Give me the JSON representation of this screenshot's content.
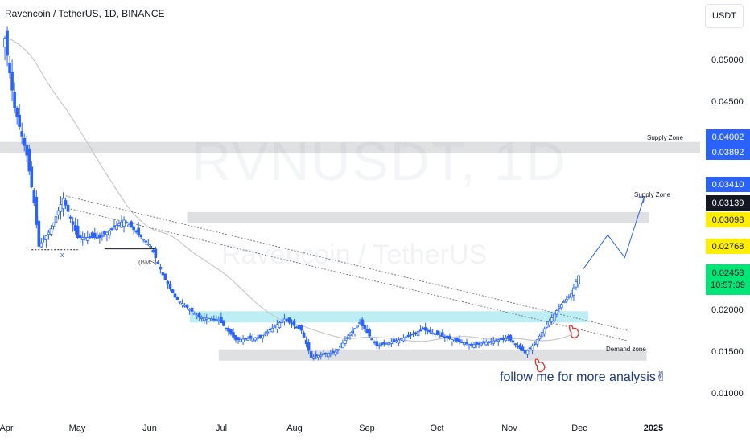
{
  "header": {
    "title": "Ravencoin / TetherUS, 1D, BINANCE",
    "currency": "USDT"
  },
  "watermark": {
    "symbol": "RVNUSDT, 1D",
    "name": "Ravencoin / TetherUS"
  },
  "annotations": {
    "supply_zone_1": "Supply Zone",
    "supply_zone_2": "Supply Zone",
    "demand_zone": "Demand zone",
    "bms": "(BMS)",
    "x_mark": "x",
    "follow": "follow me for more analysis✌"
  },
  "price_labels": [
    {
      "value": "0.04002",
      "style": "blue"
    },
    {
      "value": "0.03892",
      "style": "blue"
    },
    {
      "value": "0.03410",
      "style": "blue"
    },
    {
      "value": "0.03139",
      "style": "black"
    },
    {
      "value": "0.03098",
      "style": "yellow"
    },
    {
      "value": "0.02768",
      "style": "yellow"
    },
    {
      "value": "0.02458",
      "style": "green"
    }
  ],
  "countdown": "10:57:09",
  "colors": {
    "candle": "#2962ff",
    "supply_zone": "#d9dadd",
    "demand_zone": "#b2ebf2",
    "demand_zone_grey": "#d9dadd",
    "ma_line": "#c8c8c8",
    "trendline": "#787b86",
    "projection": "#2962ff",
    "hand": "#e53935"
  },
  "chart_data": {
    "type": "candlestick",
    "title": "Ravencoin / TetherUS, 1D, BINANCE",
    "y_ticks": [
      "0.05000",
      "0.04500",
      "0.02000",
      "0.01500",
      "0.01000"
    ],
    "y_tick_values": [
      0.05,
      0.045,
      0.02,
      0.015,
      0.01
    ],
    "x_ticks": [
      "Apr",
      "May",
      "Jun",
      "Jul",
      "Aug",
      "Sep",
      "Oct",
      "Nov",
      "Dec",
      "2025"
    ],
    "ylim": [
      0.0082,
      0.0564
    ],
    "xlim": [
      "2024-03-30",
      "2025-01-12"
    ],
    "series": [
      {
        "name": "RVNUSDT",
        "approx_close": [
          [
            "2024-04-01",
            0.052
          ],
          [
            "2024-04-05",
            0.044
          ],
          [
            "2024-04-10",
            0.0385
          ],
          [
            "2024-04-13",
            0.033
          ],
          [
            "2024-04-15",
            0.028
          ],
          [
            "2024-04-20",
            0.03
          ],
          [
            "2024-04-25",
            0.0335
          ],
          [
            "2024-05-01",
            0.029
          ],
          [
            "2024-05-10",
            0.029
          ],
          [
            "2024-05-20",
            0.031
          ],
          [
            "2024-05-31",
            0.028
          ],
          [
            "2024-06-05",
            0.0247
          ],
          [
            "2024-06-10",
            0.0221
          ],
          [
            "2024-06-20",
            0.0198
          ],
          [
            "2024-06-28",
            0.0195
          ],
          [
            "2024-07-05",
            0.0172
          ],
          [
            "2024-07-15",
            0.0175
          ],
          [
            "2024-07-25",
            0.0196
          ],
          [
            "2024-08-01",
            0.0183
          ],
          [
            "2024-08-05",
            0.0152
          ],
          [
            "2024-08-15",
            0.0158
          ],
          [
            "2024-08-25",
            0.0192
          ],
          [
            "2024-09-01",
            0.0165
          ],
          [
            "2024-09-10",
            0.0172
          ],
          [
            "2024-09-20",
            0.0184
          ],
          [
            "2024-09-30",
            0.0174
          ],
          [
            "2024-10-10",
            0.0166
          ],
          [
            "2024-10-25",
            0.0174
          ],
          [
            "2024-11-01",
            0.0157
          ],
          [
            "2024-11-05",
            0.0168
          ],
          [
            "2024-11-10",
            0.0189
          ],
          [
            "2024-11-15",
            0.021
          ],
          [
            "2024-11-20",
            0.0225
          ],
          [
            "2024-11-23",
            0.0246
          ]
        ]
      }
    ],
    "zones": [
      {
        "label": "Supply Zone",
        "from": 0.03892,
        "to": 0.04002
      },
      {
        "label": "Supply Zone",
        "from": 0.03098,
        "to": 0.03139
      },
      {
        "label": "",
        "from": 0.0195,
        "to": 0.0205
      },
      {
        "label": "Demand zone",
        "from": 0.0152,
        "to": 0.0161
      }
    ],
    "grid": false,
    "legend": "none"
  }
}
